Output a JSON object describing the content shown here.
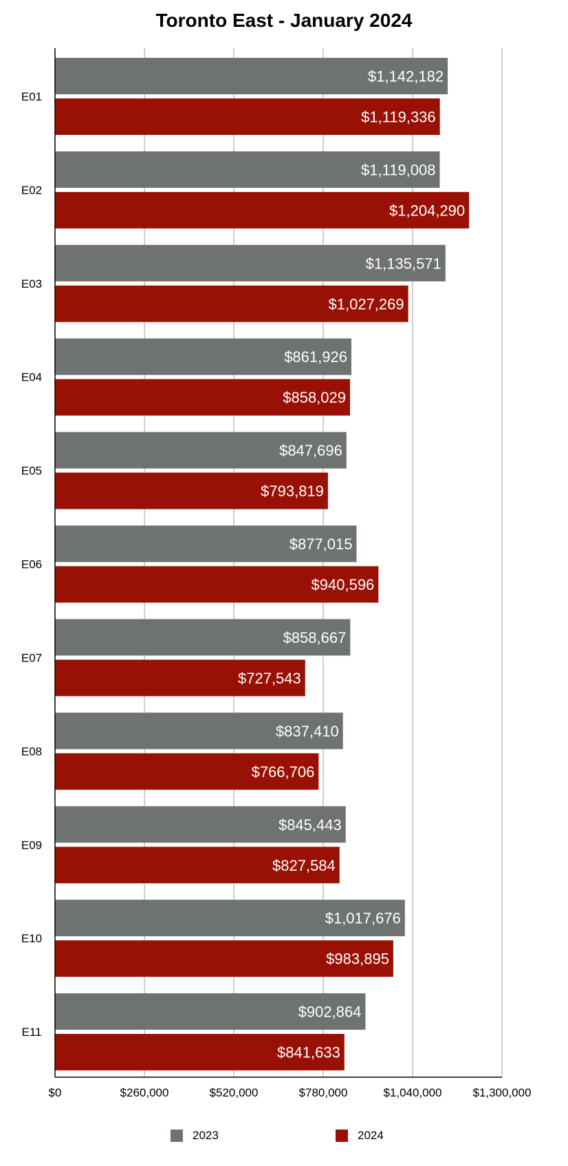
{
  "chart_data": {
    "type": "bar",
    "orientation": "horizontal",
    "title": "Toronto East - January 2024",
    "categories": [
      "E01",
      "E02",
      "E03",
      "E04",
      "E05",
      "E06",
      "E07",
      "E08",
      "E09",
      "E10",
      "E11"
    ],
    "series": [
      {
        "name": "2023",
        "color": "#6f736f",
        "values": [
          1142182,
          1119008,
          1135571,
          861926,
          847696,
          877015,
          858667,
          837410,
          845443,
          1017676,
          902864
        ],
        "labels": [
          "$1,142,182",
          "$1,119,008",
          "$1,135,571",
          "$861,926",
          "$847,696",
          "$877,015",
          "$858,667",
          "$837,410",
          "$845,443",
          "$1,017,676",
          "$902,864"
        ]
      },
      {
        "name": "2024",
        "color": "#991105",
        "values": [
          1119336,
          1204290,
          1027269,
          858029,
          793819,
          940596,
          727543,
          766706,
          827584,
          983895,
          841633
        ],
        "labels": [
          "$1,119,336",
          "$1,204,290",
          "$1,027,269",
          "$858,029",
          "$793,819",
          "$940,596",
          "$727,543",
          "$766,706",
          "$827,584",
          "$983,895",
          "$841,633"
        ]
      }
    ],
    "xlim": [
      0,
      1300000
    ],
    "x_ticks": [
      0,
      260000,
      520000,
      780000,
      1040000,
      1300000
    ],
    "x_tick_labels": [
      "$0",
      "$260,000",
      "$520,000",
      "$780,000",
      "$1,040,000",
      "$1,300,000"
    ],
    "grid": true,
    "legend_position": "bottom"
  }
}
